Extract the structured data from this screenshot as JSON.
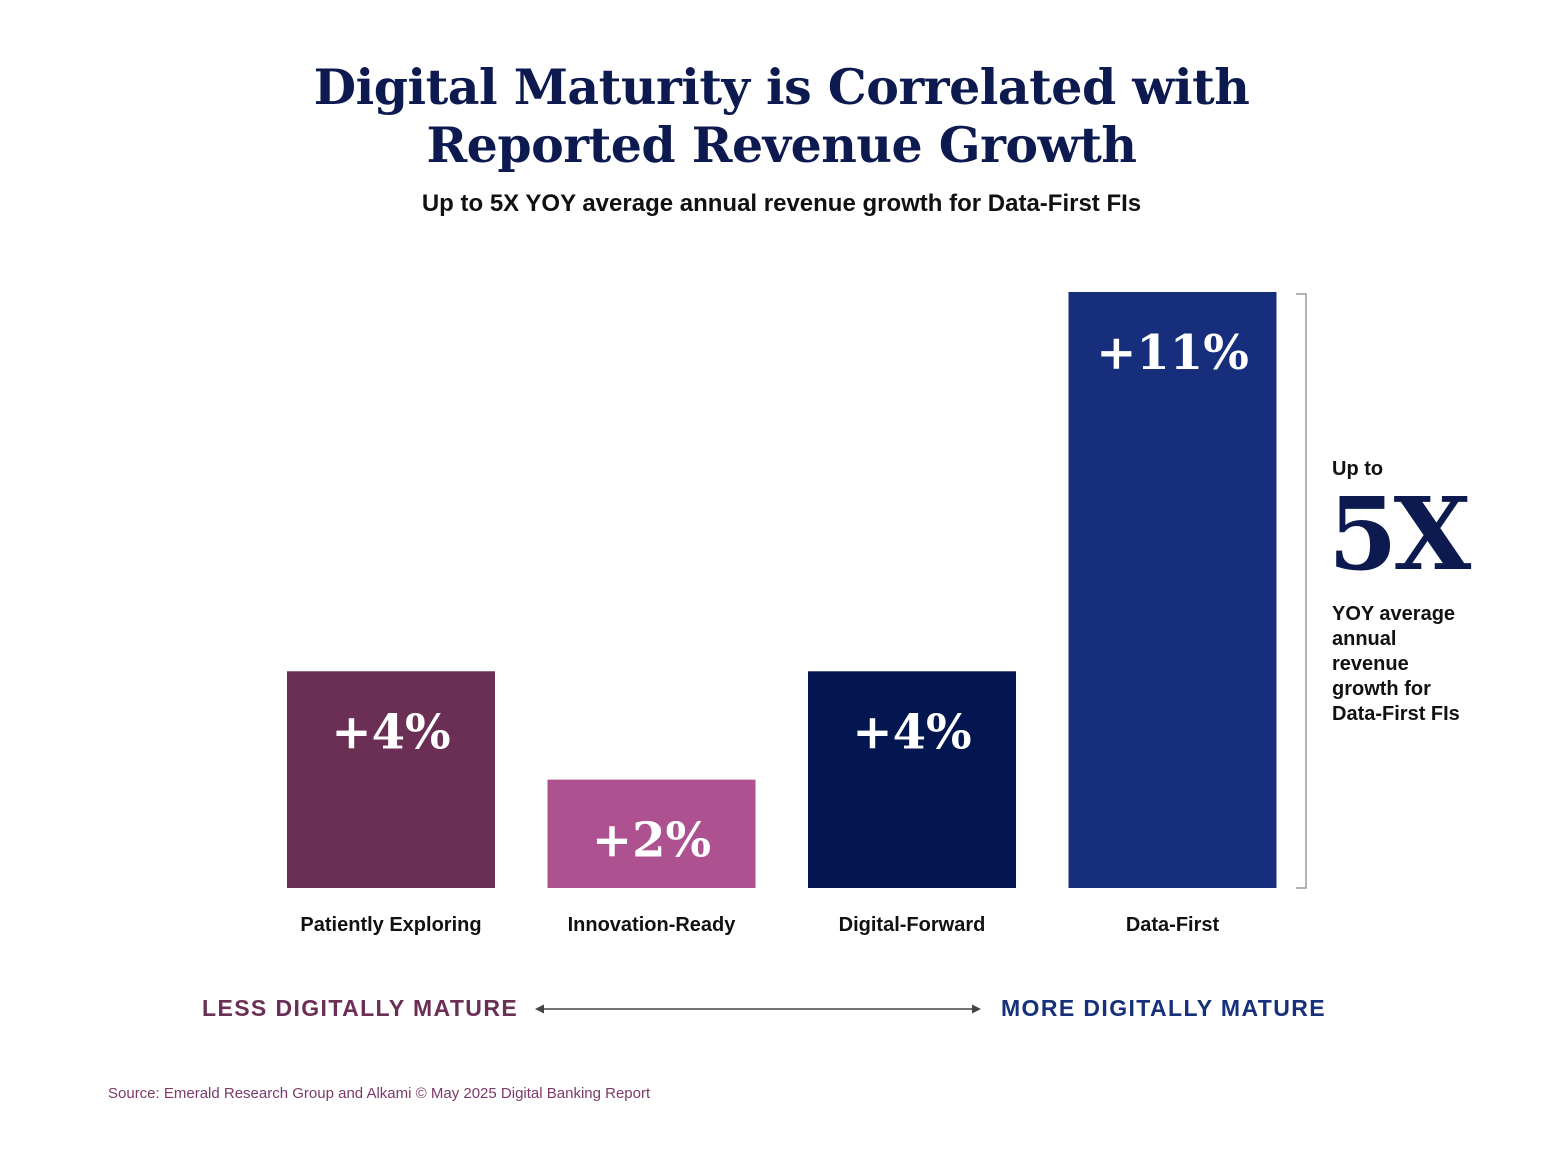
{
  "title_line1": "Digital Maturity is Correlated with",
  "title_line2": "Reported Revenue Growth",
  "subtitle": "Up to 5X YOY average annual revenue growth for Data-First FIs",
  "chart_data": {
    "type": "bar",
    "title": "Digital Maturity is Correlated with Reported Revenue Growth",
    "subtitle": "Up to 5X YOY average annual revenue growth for Data-First FIs",
    "categories": [
      "Patiently Exploring",
      "Innovation-Ready",
      "Digital-Forward",
      "Data-First"
    ],
    "values": [
      4,
      2,
      4,
      11
    ],
    "data_labels": [
      "+4%",
      "+2%",
      "+4%",
      "+11%"
    ],
    "colors": [
      "#6b2e55",
      "#ad5191",
      "#041650",
      "#162e7b"
    ],
    "units": "% YOY average annual revenue growth",
    "ylim": [
      0,
      11
    ],
    "xlabel": "",
    "ylabel": "",
    "grid": false,
    "legend": "none"
  },
  "callout": {
    "prefix": "Up to",
    "big": "5X",
    "suffix": "YOY average annual revenue growth for Data-First FIs"
  },
  "axis": {
    "less": "LESS DIGITALLY MATURE",
    "more": "MORE DIGITALLY MATURE"
  },
  "source": "Source: Emerald Research Group and Alkami © May 2025 Digital Banking Report"
}
